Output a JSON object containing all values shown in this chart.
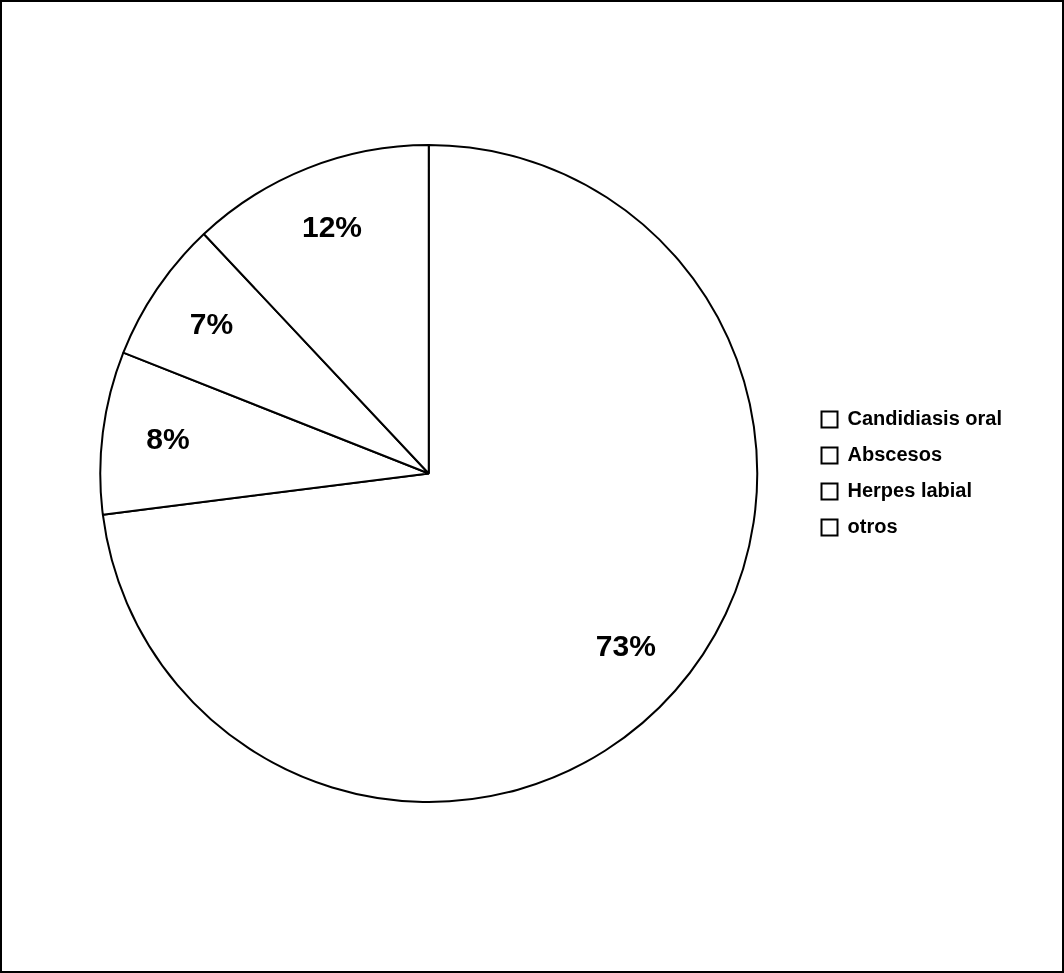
{
  "chart_data": {
    "type": "pie",
    "categories": [
      "Candidiasis oral",
      "Abscesos",
      "Herpes labial",
      "otros"
    ],
    "values": [
      73,
      8,
      7,
      12
    ],
    "value_labels": [
      "73%",
      "8%",
      "7%",
      "12%"
    ],
    "colors": [
      "#ffffff",
      "#ffffff",
      "#ffffff",
      "#ffffff"
    ],
    "legend": "right"
  }
}
